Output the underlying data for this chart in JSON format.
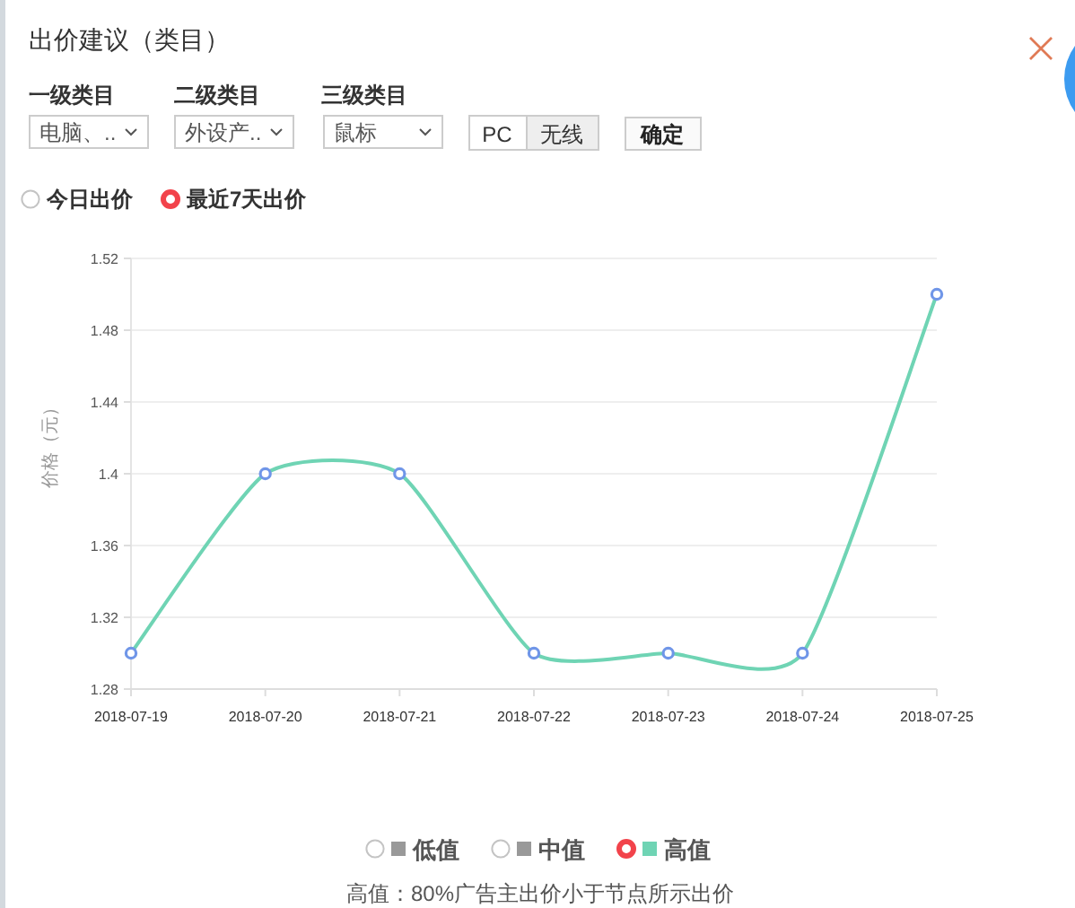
{
  "chart_data": {
    "type": "line",
    "title": "出价建议（类目）",
    "ylabel": "价格（元）",
    "categories": [
      "2018-07-19",
      "2018-07-20",
      "2018-07-21",
      "2018-07-22",
      "2018-07-23",
      "2018-07-24",
      "2018-07-25"
    ],
    "series": [
      {
        "name": "低值",
        "color": "#999999",
        "values": [
          null,
          null,
          null,
          null,
          null,
          null,
          null
        ]
      },
      {
        "name": "中值",
        "color": "#999999",
        "values": [
          null,
          null,
          null,
          null,
          null,
          null,
          null
        ]
      },
      {
        "name": "高值",
        "color": "#6fd4b4",
        "values": [
          1.3,
          1.4,
          1.4,
          1.3,
          1.3,
          1.3,
          1.5
        ]
      }
    ],
    "ylim": [
      1.28,
      1.52
    ],
    "yticks": [
      1.28,
      1.32,
      1.36,
      1.4,
      1.44,
      1.48,
      1.52
    ],
    "grid": "y",
    "legend": "bottom",
    "marker": "circle",
    "line_style": "solid",
    "annotations": [
      "一级类目",
      "二级类目",
      "三级类目",
      "电脑、..",
      "外设产..",
      "鼠标",
      "PC",
      "无线",
      "确定",
      "今日出价",
      "最近7天出价",
      "高值：80%广告主出价小于节点所示出价"
    ]
  }
}
